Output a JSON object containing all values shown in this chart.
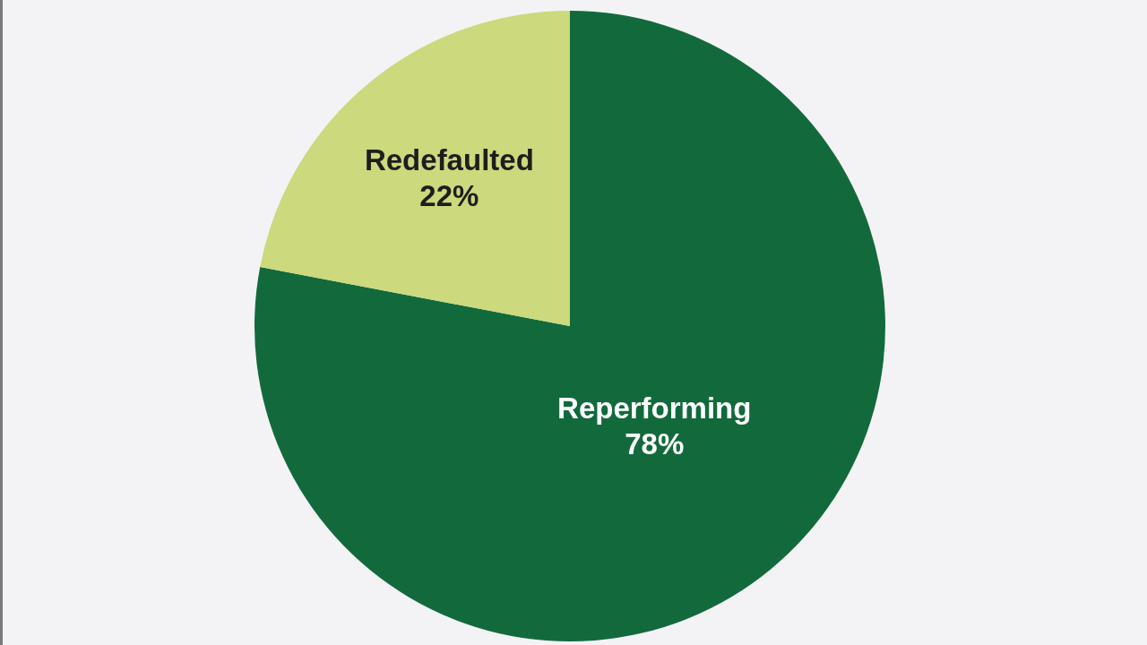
{
  "chart_data": {
    "type": "pie",
    "categories": [
      "Reperforming",
      "Redefaulted"
    ],
    "values": [
      78,
      22
    ],
    "value_labels": [
      "78%",
      "22%"
    ],
    "colors": [
      "#126a3c",
      "#ccd97c"
    ],
    "legend": false
  }
}
